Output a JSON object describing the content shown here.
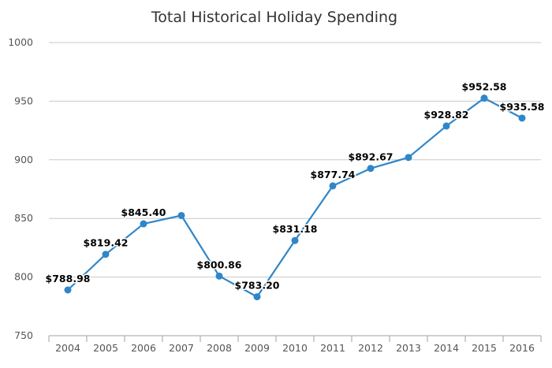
{
  "chart_data": {
    "type": "line",
    "title": "Total Historical Holiday Spending",
    "xlabel": "",
    "ylabel": "",
    "categories": [
      "2004",
      "2005",
      "2006",
      "2007",
      "2008",
      "2009",
      "2010",
      "2011",
      "2012",
      "2013",
      "2014",
      "2015",
      "2016"
    ],
    "series": [
      {
        "values": [
          788.98,
          819.42,
          845.4,
          852.5,
          800.86,
          783.2,
          831.18,
          877.74,
          892.67,
          902.0,
          928.82,
          952.58,
          935.58
        ],
        "data_labels": [
          "$788.98",
          "$819.42",
          "$845.40",
          "",
          "$800.86",
          "$783.20",
          "$831.18",
          "$877.74",
          "$892.67",
          "",
          "$928.82",
          "$952.58",
          "$935.58"
        ],
        "color": "#2f86c9"
      }
    ],
    "ylim": [
      750,
      1000
    ],
    "yticks": [
      "750",
      "800",
      "850",
      "900",
      "950",
      "1000"
    ],
    "grid": true,
    "legend": "none"
  }
}
